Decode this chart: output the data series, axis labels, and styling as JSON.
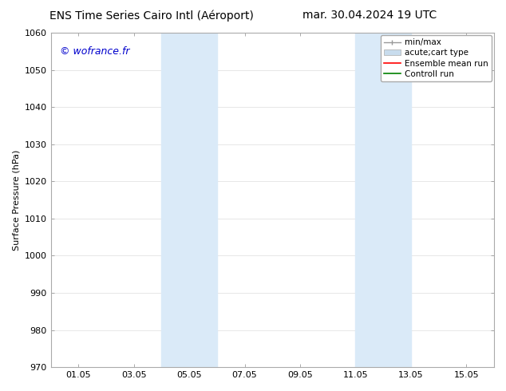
{
  "title_left": "ENS Time Series Cairo Intl (Aéroport)",
  "title_right": "mar. 30.04.2024 19 UTC",
  "ylabel": "Surface Pressure (hPa)",
  "xlabel": "",
  "xlim_min": 0,
  "xlim_max": 16,
  "ylim_min": 970,
  "ylim_max": 1060,
  "yticks": [
    970,
    980,
    990,
    1000,
    1010,
    1020,
    1030,
    1040,
    1050,
    1060
  ],
  "xtick_positions": [
    1,
    3,
    5,
    7,
    9,
    11,
    13,
    15
  ],
  "xtick_labels": [
    "01.05",
    "03.05",
    "05.05",
    "07.05",
    "09.05",
    "11.05",
    "13.05",
    "15.05"
  ],
  "shaded_bands": [
    {
      "x_start": 4.0,
      "x_end": 6.0
    },
    {
      "x_start": 11.0,
      "x_end": 13.0
    }
  ],
  "shaded_color": "#daeaf8",
  "watermark_text": "© wofrance.fr",
  "watermark_color": "#0000cc",
  "watermark_fontsize": 9,
  "bg_color": "#ffffff",
  "legend_labels": [
    "min/max",
    "acute;cart type",
    "Ensemble mean run",
    "Controll run"
  ],
  "legend_colors": [
    "#999999",
    "#c8dced",
    "#ff0000",
    "#008000"
  ],
  "grid_color": "#dddddd",
  "title_fontsize": 10,
  "axis_fontsize": 8,
  "tick_fontsize": 8,
  "legend_fontsize": 7.5
}
